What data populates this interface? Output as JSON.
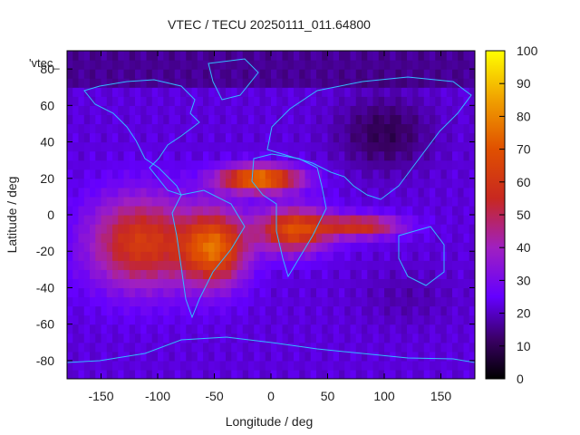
{
  "chart_data": {
    "type": "heatmap",
    "title": "VTEC / TECU 20250111_011.64800",
    "xlabel": "Longitude / deg",
    "ylabel": "Latitude / deg",
    "xlim": [
      -180,
      180
    ],
    "ylim": [
      -90,
      90
    ],
    "x_ticks": [
      "-150",
      "-100",
      "-50",
      "0",
      "50",
      "100",
      "150"
    ],
    "x_tick_values": [
      -150,
      -100,
      -50,
      0,
      50,
      100,
      150
    ],
    "y_ticks": [
      "-80",
      "-60",
      "-40",
      "-20",
      "0",
      "20",
      "40",
      "60",
      "80"
    ],
    "y_tick_values": [
      -80,
      -60,
      -40,
      -20,
      0,
      20,
      40,
      60,
      80
    ],
    "colorbar": {
      "range": [
        0,
        100
      ],
      "ticks": [
        "0",
        "10",
        "20",
        "30",
        "40",
        "50",
        "60",
        "70",
        "80",
        "90",
        "100"
      ],
      "tick_values": [
        0,
        10,
        20,
        30,
        40,
        50,
        60,
        70,
        80,
        90,
        100
      ],
      "palette": "black-purple-red-orange-yellow"
    },
    "legend_label": "'vtec_",
    "background_level_tecu": 22,
    "features": [
      {
        "name": "anomaly-crest-north",
        "lon": -10,
        "lat": 20,
        "peak_tecu": 80
      },
      {
        "name": "anomaly-pacific-belt",
        "lon": -115,
        "lat": -15,
        "peak_tecu": 62
      },
      {
        "name": "south-america-max",
        "lon": -50,
        "lat": -18,
        "peak_tecu": 72
      },
      {
        "name": "atlantic-tongue",
        "lon": 20,
        "lat": -8,
        "peak_tecu": 68
      },
      {
        "name": "indian-ocean-tongue",
        "lon": 80,
        "lat": -6,
        "peak_tecu": 58
      },
      {
        "name": "south-pacific-low",
        "lon": 120,
        "lat": -45,
        "peak_tecu": 18
      },
      {
        "name": "asia-night-low",
        "lon": 100,
        "lat": 45,
        "peak_tecu": 10
      }
    ]
  }
}
